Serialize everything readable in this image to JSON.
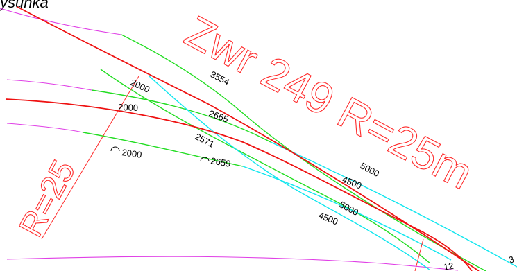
{
  "caption": "ysunka",
  "colors": {
    "rail_red": "#ee1111",
    "rail_green": "#22dd22",
    "rail_cyan": "#11e6ee",
    "rail_magenta": "#e040e6",
    "annotation_red": "#ff2a2a",
    "text": "#000000",
    "background": "#ffffff"
  },
  "labels": {
    "switch_title": "Zwr 249 R=25m",
    "radius_left": "R=25"
  },
  "dimensions": {
    "d1": "2000",
    "d2": "3554",
    "d3": "2000",
    "d4": "2665",
    "d5": "2571",
    "d6": "2000",
    "d7": "2659",
    "d8": "5000",
    "d9": "4500",
    "d10": "5000",
    "d11": "4500",
    "d12": "12",
    "d13": "3"
  }
}
